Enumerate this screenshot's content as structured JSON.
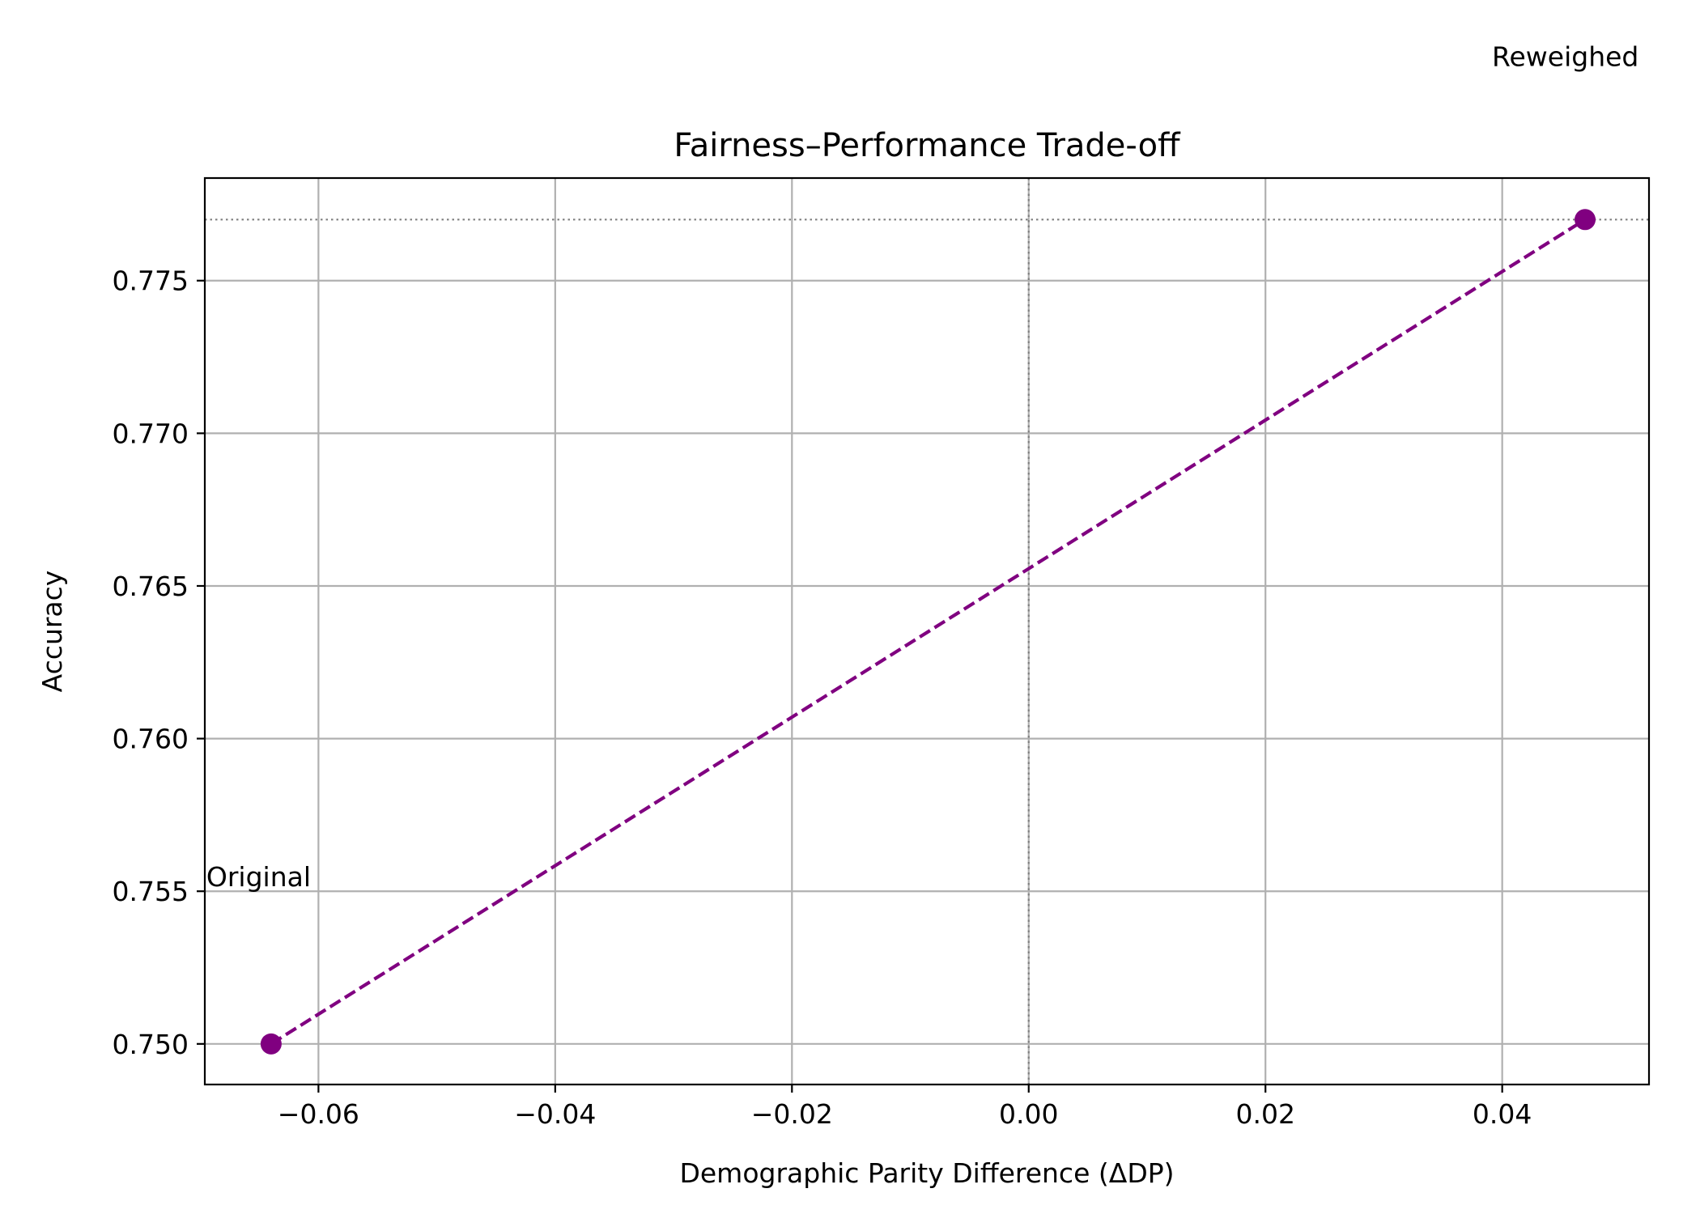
{
  "chart_data": {
    "type": "line",
    "title": "Fairness–Performance Trade-off",
    "xlabel": "Demographic Parity Difference (ΔDP)",
    "ylabel": "Accuracy",
    "xlim": [
      -0.0696,
      0.0524
    ],
    "ylim": [
      0.74867,
      0.77836
    ],
    "x_ticks": [
      -0.06,
      -0.04,
      -0.02,
      0.0,
      0.02,
      0.04
    ],
    "x_tick_labels": [
      "−0.06",
      "−0.04",
      "−0.02",
      "0.00",
      "0.02",
      "0.04"
    ],
    "y_ticks": [
      0.75,
      0.755,
      0.76,
      0.765,
      0.77,
      0.775
    ],
    "y_tick_labels": [
      "0.750",
      "0.755",
      "0.760",
      "0.765",
      "0.770",
      "0.775"
    ],
    "grid": true,
    "series": [
      {
        "x": [
          -0.064,
          0.047
        ],
        "y": [
          0.75,
          0.777
        ],
        "point_labels": [
          "Original",
          "Reweighed"
        ],
        "color": "#800080",
        "line_style": "dashed",
        "marker": "circle"
      }
    ],
    "reference_lines": [
      {
        "orientation": "vertical",
        "value": 0.0,
        "style": "dotted",
        "color": "#808080"
      },
      {
        "orientation": "horizontal",
        "value": 0.777,
        "style": "dotted",
        "color": "#808080"
      }
    ]
  }
}
